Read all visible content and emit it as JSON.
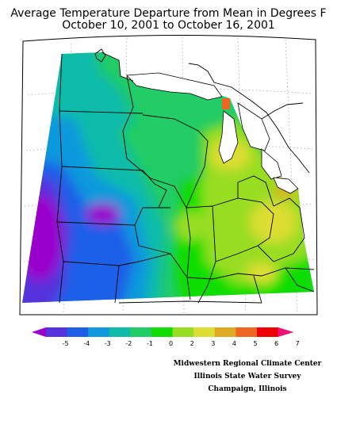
{
  "title": {
    "line1": "Average Temperature Departure from Mean in Degrees F",
    "line2": "October 10, 2001 to October 16, 2001"
  },
  "legend": {
    "ticks": [
      "-5",
      "-4",
      "-3",
      "-2",
      "-1",
      "0",
      "2",
      "3",
      "4",
      "5",
      "6",
      "7"
    ],
    "colors": [
      "#9900cc",
      "#5533dd",
      "#1f5fe8",
      "#1199dd",
      "#11bbaa",
      "#22cc66",
      "#11dd00",
      "#99dd22",
      "#dddd33",
      "#ddaa22",
      "#ee6622",
      "#ee0000",
      "#ee1177"
    ]
  },
  "credits": {
    "line1": "Midwestern Regional Climate Center",
    "line2": "Illinois State Water Survey",
    "line3": "Champaign, Illinois"
  },
  "map_colors": {
    "lake": "#ffffff",
    "border": "#000000",
    "frame": "#000000"
  }
}
